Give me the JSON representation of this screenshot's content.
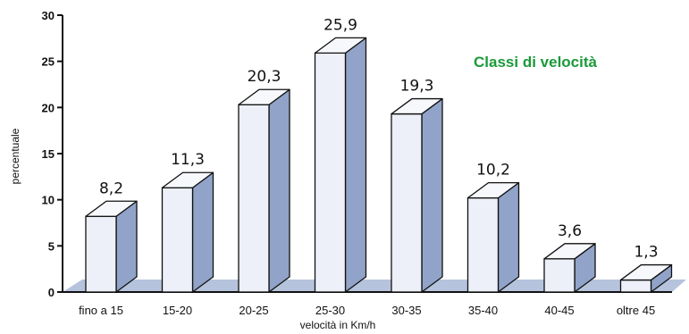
{
  "chart_data": {
    "type": "bar",
    "title": "Classi di velocità",
    "xlabel": "velocità in  Km/h",
    "ylabel": "percentuale",
    "categories": [
      "fino a  15",
      "15-20",
      "20-25",
      "25-30",
      "30-35",
      "35-40",
      "40-45",
      "oltre  45"
    ],
    "values": [
      8.2,
      11.3,
      20.3,
      25.9,
      19.3,
      10.2,
      3.6,
      1.3
    ],
    "data_labels": [
      "8,2",
      "11,3",
      "20,3",
      "25,9",
      "19,3",
      "10,2",
      "3,6",
      "1,3"
    ],
    "ylim": [
      0,
      30
    ],
    "yticks": [
      "0",
      "5",
      "10",
      "15",
      "20",
      "25",
      "30"
    ],
    "grid": false,
    "style": "3d",
    "colors": {
      "bar_front": "#edf0f8",
      "bar_side": "#91a3c8",
      "bar_top": "#f7f8fc",
      "floor": "#b6c3dc",
      "outline": "#111111",
      "title": "#1a9a3a"
    }
  }
}
